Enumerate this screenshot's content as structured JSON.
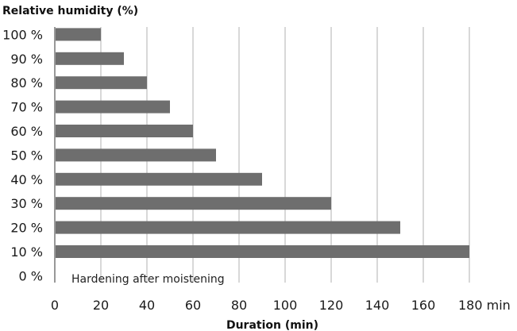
{
  "chart_data": {
    "type": "bar",
    "orientation": "horizontal",
    "categories": [
      "10 %",
      "20 %",
      "30 %",
      "40 %",
      "50 %",
      "60 %",
      "70 %",
      "80 %",
      "90 %",
      "100 %"
    ],
    "empty_category": "0 %",
    "values": [
      180,
      150,
      120,
      90,
      70,
      60,
      50,
      40,
      30,
      20
    ],
    "xlabel": "Duration (min)",
    "ylabel": "Relative humidity (%)",
    "xlim": [
      0,
      180
    ],
    "xticks": [
      0,
      20,
      40,
      60,
      80,
      100,
      120,
      140,
      160
    ],
    "xtick_last_label": "180 min",
    "annotation": "Hardening after moistening",
    "grid": "vertical",
    "colors": {
      "bar": "#6e6e6e",
      "grid": "#bdbdbd",
      "axis": "#555555"
    }
  }
}
